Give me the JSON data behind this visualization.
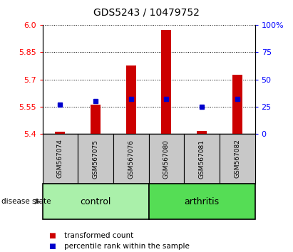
{
  "title": "GDS5243 / 10479752",
  "samples": [
    "GSM567074",
    "GSM567075",
    "GSM567076",
    "GSM567080",
    "GSM567081",
    "GSM567082"
  ],
  "bar_bottoms": [
    5.4,
    5.4,
    5.4,
    5.4,
    5.4,
    5.4
  ],
  "bar_tops": [
    5.41,
    5.56,
    5.775,
    5.975,
    5.415,
    5.725
  ],
  "percentile_ranks": [
    27.0,
    30.0,
    32.0,
    32.0,
    25.0,
    32.0
  ],
  "groups": [
    {
      "label": "control",
      "indices": [
        0,
        1,
        2
      ],
      "color": "#aaf0aa"
    },
    {
      "label": "arthritis",
      "indices": [
        3,
        4,
        5
      ],
      "color": "#55dd55"
    }
  ],
  "ylim": [
    5.4,
    6.0
  ],
  "yticks_left": [
    5.4,
    5.55,
    5.7,
    5.85,
    6.0
  ],
  "yticks_right": [
    0,
    25,
    50,
    75,
    100
  ],
  "bar_color": "#cc0000",
  "blue_color": "#0000cc",
  "sample_box_color": "#c8c8c8",
  "disease_state_label": "disease state",
  "legend_items": [
    {
      "color": "#cc0000",
      "label": "transformed count"
    },
    {
      "color": "#0000cc",
      "label": "percentile rank within the sample"
    }
  ],
  "fig_width": 4.11,
  "fig_height": 3.54,
  "dpi": 100
}
